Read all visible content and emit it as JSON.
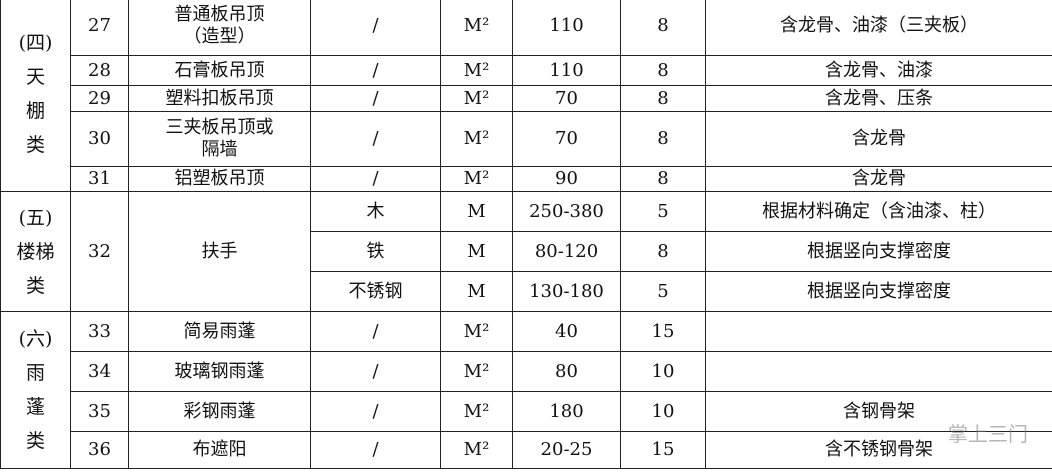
{
  "groups": [
    {
      "category": [
        "(四)",
        "天",
        "棚",
        "类"
      ],
      "rows": [
        {
          "no": "27",
          "name": "普通板吊顶（造型）",
          "items": [
            {
              "spec": "/",
              "unit": "M²",
              "price": "110",
              "life": "8",
              "note": "含龙骨、油漆（三夹板）"
            }
          ]
        },
        {
          "no": "28",
          "name": "石膏板吊顶",
          "items": [
            {
              "spec": "/",
              "unit": "M²",
              "price": "110",
              "life": "8",
              "note": "含龙骨、油漆"
            }
          ]
        },
        {
          "no": "29",
          "name": "塑料扣板吊顶",
          "items": [
            {
              "spec": "/",
              "unit": "M²",
              "price": "70",
              "life": "8",
              "note": "含龙骨、压条"
            }
          ]
        },
        {
          "no": "30",
          "name": "三夹板吊顶或隔墙",
          "items": [
            {
              "spec": "/",
              "unit": "M²",
              "price": "70",
              "life": "8",
              "note": "含龙骨"
            }
          ]
        },
        {
          "no": "31",
          "name": "铝塑板吊顶",
          "items": [
            {
              "spec": "/",
              "unit": "M²",
              "price": "90",
              "life": "8",
              "note": "含龙骨"
            }
          ]
        }
      ]
    },
    {
      "category": [
        "(五)",
        "楼梯",
        "类"
      ],
      "rows": [
        {
          "no": "32",
          "name": "扶手",
          "items": [
            {
              "spec": "木",
              "unit": "M",
              "price": "250-380",
              "life": "5",
              "note": "根据材料确定（含油漆、柱）"
            },
            {
              "spec": "铁",
              "unit": "M",
              "price": "80-120",
              "life": "8",
              "note": "根据竖向支撑密度"
            },
            {
              "spec": "不锈钢",
              "unit": "M",
              "price": "130-180",
              "life": "5",
              "note": "根据竖向支撑密度"
            }
          ]
        }
      ]
    },
    {
      "category": [
        "(六)",
        "雨",
        "蓬",
        "类"
      ],
      "rows": [
        {
          "no": "33",
          "name": "简易雨蓬",
          "items": [
            {
              "spec": "/",
              "unit": "M²",
              "price": "40",
              "life": "15"
            }
          ]
        },
        {
          "no": "34",
          "name": "玻璃钢雨蓬",
          "items": [
            {
              "spec": "/",
              "unit": "M²",
              "price": "80",
              "life": "10"
            }
          ]
        },
        {
          "no": "35",
          "name": "彩钢雨蓬",
          "items": [
            {
              "spec": "/",
              "unit": "M²",
              "price": "180",
              "life": "10",
              "note": "含钢骨架"
            }
          ]
        },
        {
          "no": "36",
          "name": "布遮阳",
          "items": [
            {
              "spec": "/",
              "unit": "M²",
              "price": "20-25",
              "life": "15",
              "note": "含不锈钢骨架"
            }
          ]
        }
      ]
    }
  ],
  "watermark": "掌上三门"
}
